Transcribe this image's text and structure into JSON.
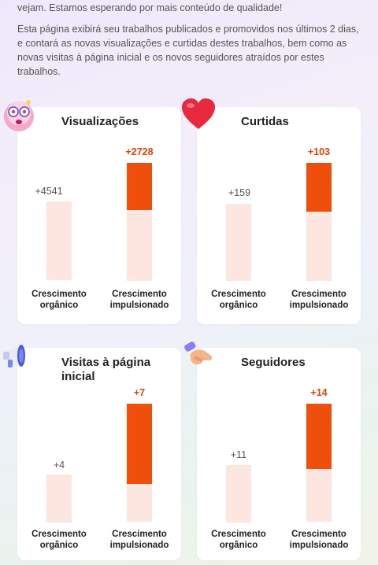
{
  "intro": {
    "line1": "vejam. Estamos esperando por mais conteúdo de qualidade!",
    "paragraph": "Esta página exibirá seu trabalhos publicados e promovidos nos últimos 2 dias, e contará as novas visualizações e curtidas destes trabalhos, bem como as novas visitas à página inicial e os novos seguidores atraídos por estes trabalhos."
  },
  "labels": {
    "organic_line1": "Crescimento",
    "organic_line2": "orgânico",
    "boosted_line1": "Crescimento",
    "boosted_line2": "impulsionado"
  },
  "colors": {
    "boosted_fill": "#f04e0b",
    "bar_base": "#fde6df",
    "boosted_value": "#ea3f0a"
  },
  "cards": {
    "views": {
      "title": "Visualizações",
      "icon": "dizzy-face-icon",
      "organic_value": "+4541",
      "boosted_value": "+2728",
      "boosted_fill_fraction": 0.4
    },
    "likes": {
      "title": "Curtidas",
      "icon": "heart-icon",
      "organic_value": "+159",
      "boosted_value": "+103",
      "boosted_fill_fraction": 0.41
    },
    "visits": {
      "title": "Visitas à página inicial",
      "icon": "megaphone-icon",
      "organic_value": "+4",
      "boosted_value": "+7",
      "boosted_fill_fraction": 0.68
    },
    "followers": {
      "title": "Seguidores",
      "icon": "handshake-icon",
      "organic_value": "+11",
      "boosted_value": "+14",
      "boosted_fill_fraction": 0.55
    }
  }
}
